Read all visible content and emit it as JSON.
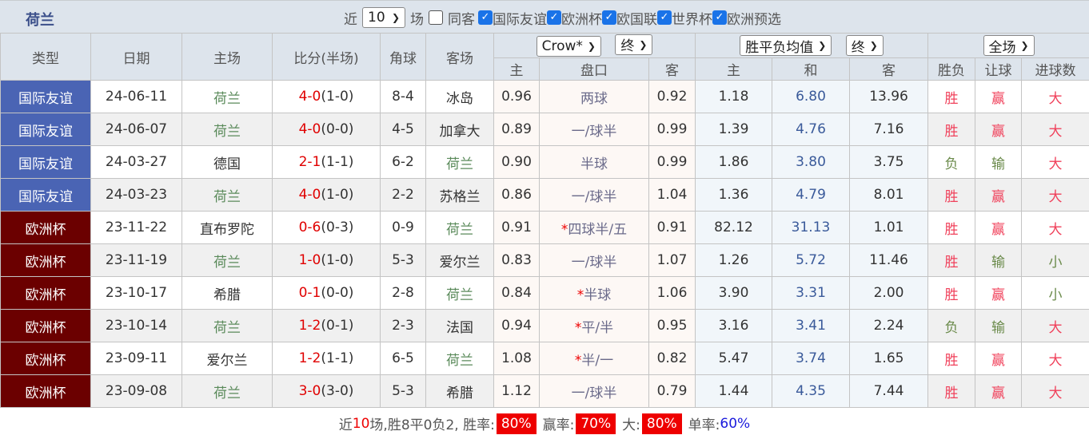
{
  "team": "荷兰",
  "filters": {
    "recent_label": "近",
    "count": "10",
    "games_label": "场",
    "same_away": "同客",
    "competitions": [
      {
        "label": "国际友谊",
        "checked": true
      },
      {
        "label": "欧洲杯",
        "checked": true
      },
      {
        "label": "欧国联",
        "checked": true
      },
      {
        "label": "世界杯",
        "checked": true
      },
      {
        "label": "欧洲预选",
        "checked": true
      }
    ]
  },
  "header": {
    "type": "类型",
    "date": "日期",
    "home": "主场",
    "score": "比分(半场)",
    "corner": "角球",
    "away": "客场",
    "asian_company": "Crow*",
    "asian_stage": "终",
    "euro_company": "胜平负均值",
    "euro_stage": "终",
    "period": "全场",
    "a_home": "主",
    "a_line": "盘口",
    "a_away": "客",
    "e_home": "主",
    "e_draw": "和",
    "e_away": "客",
    "wl": "胜负",
    "hcp": "让球",
    "goals": "进球数"
  },
  "rows": [
    {
      "type": "国际友谊",
      "cls": "intl",
      "date": "24-06-11",
      "home": "荷兰",
      "ft": "4-0",
      "ht": "(1-0)",
      "corner": "8-4",
      "away": "冰岛",
      "ah": "0.96",
      "star": "",
      "line": "两球",
      "aa": "0.92",
      "eh": "1.18",
      "ed": "6.80",
      "ea": "13.96",
      "wl": "胜",
      "hcp": "赢",
      "goals": "大"
    },
    {
      "type": "国际友谊",
      "cls": "intl",
      "date": "24-06-07",
      "home": "荷兰",
      "ft": "4-0",
      "ht": "(0-0)",
      "corner": "4-5",
      "away": "加拿大",
      "ah": "0.89",
      "star": "",
      "line": "一/球半",
      "aa": "0.99",
      "eh": "1.39",
      "ed": "4.76",
      "ea": "7.16",
      "wl": "胜",
      "hcp": "赢",
      "goals": "大"
    },
    {
      "type": "国际友谊",
      "cls": "intl",
      "date": "24-03-27",
      "home": "德国",
      "ft": "2-1",
      "ht": "(1-1)",
      "corner": "6-2",
      "away": "荷兰",
      "ah": "0.90",
      "star": "",
      "line": "半球",
      "aa": "0.99",
      "eh": "1.86",
      "ed": "3.80",
      "ea": "3.75",
      "wl": "负",
      "hcp": "输",
      "goals": "大"
    },
    {
      "type": "国际友谊",
      "cls": "intl",
      "date": "24-03-23",
      "home": "荷兰",
      "ft": "4-0",
      "ht": "(1-0)",
      "corner": "2-2",
      "away": "苏格兰",
      "ah": "0.86",
      "star": "",
      "line": "一/球半",
      "aa": "1.04",
      "eh": "1.36",
      "ed": "4.79",
      "ea": "8.01",
      "wl": "胜",
      "hcp": "赢",
      "goals": "大"
    },
    {
      "type": "欧洲杯",
      "cls": "euro",
      "date": "23-11-22",
      "home": "直布罗陀",
      "ft": "0-6",
      "ht": "(0-3)",
      "corner": "0-9",
      "away": "荷兰",
      "ah": "0.91",
      "star": "*",
      "line": "四球半/五",
      "aa": "0.91",
      "eh": "82.12",
      "ed": "31.13",
      "ea": "1.01",
      "wl": "胜",
      "hcp": "赢",
      "goals": "大"
    },
    {
      "type": "欧洲杯",
      "cls": "euro",
      "date": "23-11-19",
      "home": "荷兰",
      "ft": "1-0",
      "ht": "(1-0)",
      "corner": "5-3",
      "away": "爱尔兰",
      "ah": "0.83",
      "star": "",
      "line": "一/球半",
      "aa": "1.07",
      "eh": "1.26",
      "ed": "5.72",
      "ea": "11.46",
      "wl": "胜",
      "hcp": "输",
      "goals": "小"
    },
    {
      "type": "欧洲杯",
      "cls": "euro",
      "date": "23-10-17",
      "home": "希腊",
      "ft": "0-1",
      "ht": "(0-0)",
      "corner": "2-8",
      "away": "荷兰",
      "ah": "0.84",
      "star": "*",
      "line": "半球",
      "aa": "1.06",
      "eh": "3.90",
      "ed": "3.31",
      "ea": "2.00",
      "wl": "胜",
      "hcp": "赢",
      "goals": "小"
    },
    {
      "type": "欧洲杯",
      "cls": "euro",
      "date": "23-10-14",
      "home": "荷兰",
      "ft": "1-2",
      "ht": "(0-1)",
      "corner": "2-3",
      "away": "法国",
      "ah": "0.94",
      "star": "*",
      "line": "平/半",
      "aa": "0.95",
      "eh": "3.16",
      "ed": "3.41",
      "ea": "2.24",
      "wl": "负",
      "hcp": "输",
      "goals": "大"
    },
    {
      "type": "欧洲杯",
      "cls": "euro",
      "date": "23-09-11",
      "home": "爱尔兰",
      "ft": "1-2",
      "ht": "(1-1)",
      "corner": "6-5",
      "away": "荷兰",
      "ah": "1.08",
      "star": "*",
      "line": "半/一",
      "aa": "0.82",
      "eh": "5.47",
      "ed": "3.74",
      "ea": "1.65",
      "wl": "胜",
      "hcp": "赢",
      "goals": "大"
    },
    {
      "type": "欧洲杯",
      "cls": "euro",
      "date": "23-09-08",
      "home": "荷兰",
      "ft": "3-0",
      "ht": "(3-0)",
      "corner": "5-3",
      "away": "希腊",
      "ah": "1.12",
      "star": "",
      "line": "一/球半",
      "aa": "0.79",
      "eh": "1.44",
      "ed": "4.35",
      "ea": "7.44",
      "wl": "胜",
      "hcp": "赢",
      "goals": "大"
    }
  ],
  "summary": {
    "pre": "近",
    "n": "10",
    "mid": "场,胜8平0负2, 胜率:",
    "win_rate": "80%",
    "hcp_label": "赢率:",
    "hcp_rate": "70%",
    "big_label": "大:",
    "big_rate": "80%",
    "odd_label": "单率:",
    "odd_rate": "60%"
  }
}
